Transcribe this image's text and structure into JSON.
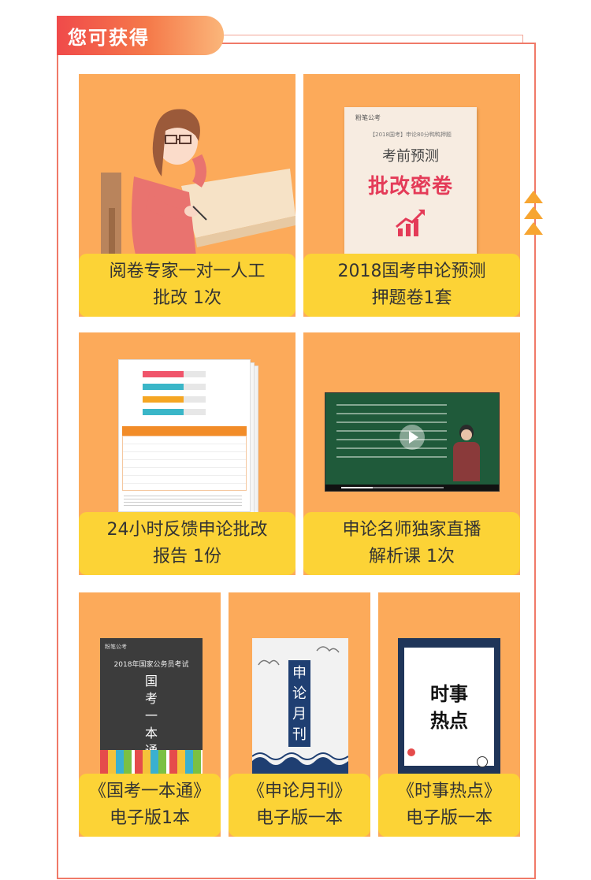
{
  "header": {
    "title": "您可获得"
  },
  "items": [
    {
      "line1": "阅卷专家一对一人工",
      "line2": "批改 1次"
    },
    {
      "line1": "2018国考申论预测",
      "line2": "押题卷1套"
    },
    {
      "line1": "24小时反馈申论批改",
      "line2": "报告 1份"
    },
    {
      "line1": "申论名师独家直播",
      "line2": "解析课 1次"
    },
    {
      "line1": "《国考一本通》",
      "line2": "电子版1本"
    },
    {
      "line1": "《申论月刊》",
      "line2": "电子版一本"
    },
    {
      "line1": "《时事热点》",
      "line2": "电子版一本"
    }
  ],
  "exam_paper": {
    "brand": "粉笔公考",
    "subtitle": "【2018国考】申论80分鸭鸭押题",
    "title1": "考前预测",
    "title2": "批改密卷"
  },
  "book1": {
    "brand": "粉笔公考",
    "top": "2018年国家公务员考试",
    "title": "国考一本通"
  },
  "book2": {
    "title": "申论月刊"
  },
  "book3": {
    "title_line1": "时事",
    "title_line2": "热点"
  },
  "colors": {
    "accent": "#f07a68",
    "card": "#fcaa5a",
    "caption": "#fcd336",
    "arrows": "#f7a531"
  },
  "icons": [
    "up-triangle-icon",
    "play-icon",
    "trend-chart-icon"
  ]
}
